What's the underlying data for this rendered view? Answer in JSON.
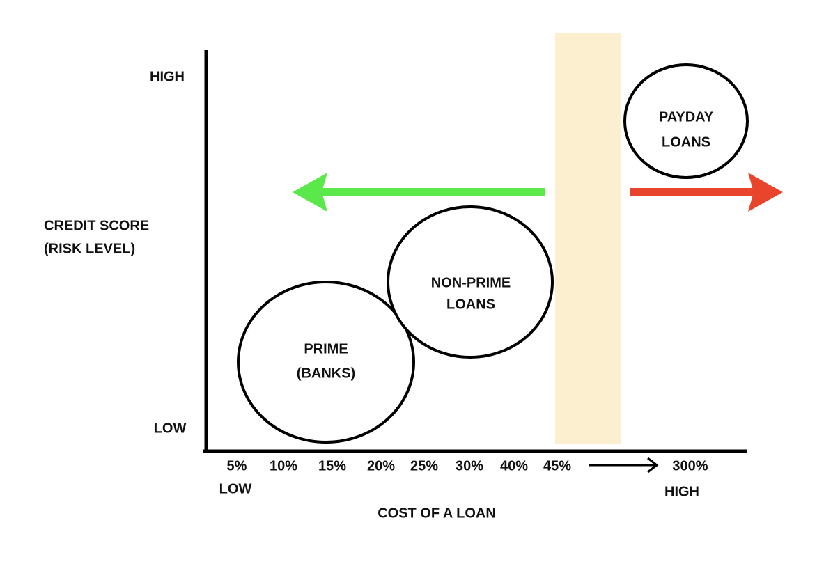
{
  "y_axis": {
    "title": [
      "CREDIT SCORE",
      "(RISK LEVEL)"
    ],
    "high": "HIGH",
    "low": "LOW"
  },
  "x_axis": {
    "title": "COST OF A LOAN",
    "ticks": [
      "5%",
      "10%",
      "15%",
      "20%",
      "25%",
      "30%",
      "40%",
      "45%",
      "300%"
    ],
    "low": "LOW",
    "high": "HIGH"
  },
  "nodes": [
    {
      "label": [
        "PRIME",
        "(BANKS)"
      ]
    },
    {
      "label": [
        "NON-PRIME",
        "LOANS"
      ]
    },
    {
      "label": [
        "PAYDAY",
        "LOANS"
      ]
    }
  ]
}
